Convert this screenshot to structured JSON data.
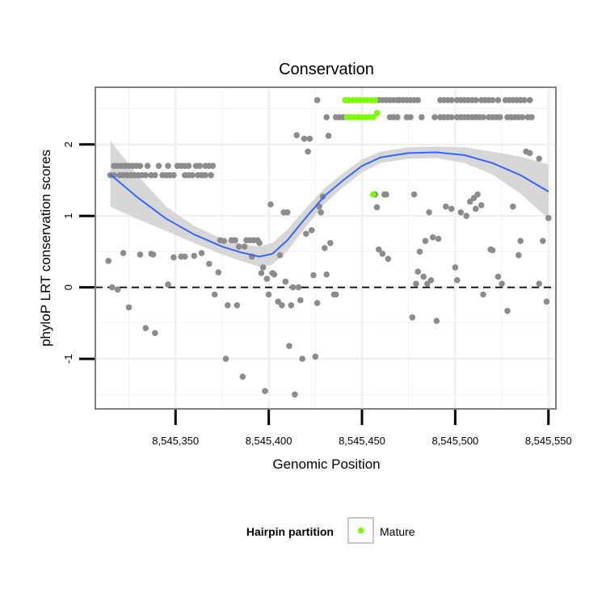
{
  "chart_data": {
    "type": "scatter",
    "title": "Conservation",
    "xlabel": "Genomic Position",
    "ylabel": "phyloP LRT conservation scores",
    "xlim": [
      8545307,
      8545554
    ],
    "ylim": [
      -1.7,
      2.8
    ],
    "x_ticks": [
      {
        "value": 8545350,
        "label": "8,545,350"
      },
      {
        "value": 8545400,
        "label": "8,545,400"
      },
      {
        "value": 8545450,
        "label": "8,545,450"
      },
      {
        "value": 8545500,
        "label": "8,545,500"
      },
      {
        "value": 8545550,
        "label": "8,545,550"
      }
    ],
    "y_ticks": [
      {
        "value": -1,
        "label": "-1"
      },
      {
        "value": 0,
        "label": "0"
      },
      {
        "value": 1,
        "label": "1"
      },
      {
        "value": 2,
        "label": "2"
      }
    ],
    "grid": true,
    "reference_line": {
      "y": 0,
      "style": "dashed"
    },
    "legend": {
      "title": "Hairpin partition",
      "position": "bottom",
      "entries": [
        {
          "label": "Mature",
          "color": "#7cfc00"
        }
      ]
    },
    "colors": {
      "points": "#8c8c8c",
      "mature": "#7cfc00",
      "smooth_line": "#3366ff",
      "ribbon": "#d3d3d3",
      "panel_border": "#808080",
      "grid": "#f0f0f0"
    },
    "smooth": {
      "x": [
        8545315,
        8545330,
        8545345,
        8545360,
        8545375,
        8545385,
        8545395,
        8545402,
        8545410,
        8545420,
        8545430,
        8545440,
        8545450,
        8545460,
        8545475,
        8545490,
        8545505,
        8545520,
        8545535,
        8545550
      ],
      "y": [
        1.58,
        1.25,
        0.96,
        0.74,
        0.57,
        0.49,
        0.43,
        0.47,
        0.66,
        0.98,
        1.28,
        1.5,
        1.7,
        1.82,
        1.88,
        1.89,
        1.85,
        1.74,
        1.57,
        1.34
      ],
      "lower": [
        1.13,
        0.95,
        0.79,
        0.62,
        0.46,
        0.37,
        0.29,
        0.32,
        0.51,
        0.85,
        1.17,
        1.4,
        1.61,
        1.74,
        1.8,
        1.81,
        1.74,
        1.58,
        1.31,
        0.96
      ],
      "upper": [
        2.05,
        1.56,
        1.13,
        0.86,
        0.68,
        0.61,
        0.57,
        0.62,
        0.81,
        1.11,
        1.39,
        1.6,
        1.79,
        1.9,
        1.96,
        1.97,
        1.96,
        1.9,
        1.83,
        1.72
      ]
    },
    "series": [
      {
        "name": "",
        "color": "#8c8c8c",
        "points": [
          [
            8545317,
            1.7
          ],
          [
            8545319,
            1.7
          ],
          [
            8545321,
            1.7
          ],
          [
            8545323,
            1.7
          ],
          [
            8545325,
            1.7
          ],
          [
            8545327,
            1.7
          ],
          [
            8545329,
            1.7
          ],
          [
            8545331,
            1.7
          ],
          [
            8545335,
            1.7
          ],
          [
            8545341,
            1.7
          ],
          [
            8545346,
            1.7
          ],
          [
            8545351,
            1.7
          ],
          [
            8545353,
            1.7
          ],
          [
            8545355,
            1.7
          ],
          [
            8545357,
            1.7
          ],
          [
            8545361,
            1.7
          ],
          [
            8545363,
            1.7
          ],
          [
            8545366,
            1.7
          ],
          [
            8545368,
            1.7
          ],
          [
            8545370,
            1.7
          ],
          [
            8545315,
            1.57
          ],
          [
            8545317,
            1.57
          ],
          [
            8545320,
            1.57
          ],
          [
            8545322,
            1.57
          ],
          [
            8545324,
            1.57
          ],
          [
            8545326,
            1.57
          ],
          [
            8545328,
            1.57
          ],
          [
            8545330,
            1.57
          ],
          [
            8545332,
            1.57
          ],
          [
            8545334,
            1.57
          ],
          [
            8545337,
            1.57
          ],
          [
            8545339,
            1.57
          ],
          [
            8545343,
            1.57
          ],
          [
            8545345,
            1.57
          ],
          [
            8545347,
            1.57
          ],
          [
            8545349,
            1.57
          ],
          [
            8545355,
            1.57
          ],
          [
            8545357,
            1.57
          ],
          [
            8545359,
            1.57
          ],
          [
            8545362,
            1.57
          ],
          [
            8545364,
            1.57
          ],
          [
            8545366,
            1.57
          ],
          [
            8545369,
            1.57
          ],
          [
            8545314,
            0.37
          ],
          [
            8545316,
            0.0
          ],
          [
            8545319,
            -0.03
          ],
          [
            8545322,
            0.48
          ],
          [
            8545325,
            -0.28
          ],
          [
            8545331,
            0.46
          ],
          [
            8545334,
            -0.57
          ],
          [
            8545337,
            0.47
          ],
          [
            8545338,
            0.46
          ],
          [
            8545339,
            -0.64
          ],
          [
            8545346,
            0.04
          ],
          [
            8545349,
            0.42
          ],
          [
            8545353,
            0.43
          ],
          [
            8545355,
            0.43
          ],
          [
            8545360,
            0.44
          ],
          [
            8545364,
            0.48
          ],
          [
            8545368,
            0.33
          ],
          [
            8545371,
            -0.1
          ],
          [
            8545373,
            0.21
          ],
          [
            8545374,
            0.66
          ],
          [
            8545376,
            0.65
          ],
          [
            8545377,
            -1.0
          ],
          [
            8545378,
            -0.25
          ],
          [
            8545380,
            0.66
          ],
          [
            8545382,
            0.66
          ],
          [
            8545383,
            -0.25
          ],
          [
            8545384,
            0.57
          ],
          [
            8545386,
            -1.25
          ],
          [
            8545387,
            0.57
          ],
          [
            8545388,
            0.66
          ],
          [
            8545390,
            0.66
          ],
          [
            8545391,
            0.43
          ],
          [
            8545392,
            0.66
          ],
          [
            8545394,
            0.66
          ],
          [
            8545395,
            0.62
          ],
          [
            8545396,
            0.2
          ],
          [
            8545397,
            0.28
          ],
          [
            8545398,
            -1.45
          ],
          [
            8545399,
            0.12
          ],
          [
            8545400,
            -0.1
          ],
          [
            8545401,
            1.16
          ],
          [
            8545402,
            0.2
          ],
          [
            8545403,
            0.18
          ],
          [
            8545405,
            -0.2
          ],
          [
            8545406,
            0.45
          ],
          [
            8545407,
            -0.25
          ],
          [
            8545408,
            1.05
          ],
          [
            8545409,
            0.08
          ],
          [
            8545410,
            1.05
          ],
          [
            8545411,
            -0.82
          ],
          [
            8545412,
            -0.25
          ],
          [
            8545413,
            0.0
          ],
          [
            8545414,
            -1.5
          ],
          [
            8545415,
            2.13
          ],
          [
            8545416,
            0.0
          ],
          [
            8545417,
            -0.18
          ],
          [
            8545418,
            -1.0
          ],
          [
            8545419,
            2.08
          ],
          [
            8545420,
            0.75
          ],
          [
            8545421,
            1.9
          ],
          [
            8545422,
            2.08
          ],
          [
            8545423,
            0.8
          ],
          [
            8545424,
            0.17
          ],
          [
            8545425,
            -0.97
          ],
          [
            8545426,
            -0.22
          ],
          [
            8545427,
            1.13
          ],
          [
            8545428,
            1.05
          ],
          [
            8545429,
            1.27
          ],
          [
            8545430,
            0.55
          ],
          [
            8545431,
            0.18
          ],
          [
            8545432,
            2.12
          ],
          [
            8545433,
            0.62
          ],
          [
            8545435,
            -0.1
          ],
          [
            8545436,
            -0.1
          ],
          [
            8545426,
            2.62
          ],
          [
            8545431,
            2.38
          ],
          [
            8545436,
            2.38
          ],
          [
            8545438,
            2.38
          ],
          [
            8545440,
            2.38
          ],
          [
            8545457,
            1.3
          ],
          [
            8545458,
            1.12
          ],
          [
            8545459,
            0.53
          ],
          [
            8545461,
            0.47
          ],
          [
            8545462,
            1.3
          ],
          [
            8545463,
            1.3
          ],
          [
            8545464,
            0.4
          ],
          [
            8545465,
            2.38
          ],
          [
            8545467,
            2.38
          ],
          [
            8545469,
            2.38
          ],
          [
            8545470,
            2.62
          ],
          [
            8545472,
            2.62
          ],
          [
            8545474,
            2.38
          ],
          [
            8545476,
            2.38
          ],
          [
            8545477,
            -0.42
          ],
          [
            8545478,
            1.3
          ],
          [
            8545479,
            0.05
          ],
          [
            8545480,
            0.22
          ],
          [
            8545481,
            0.5
          ],
          [
            8545482,
            2.38
          ],
          [
            8545483,
            0.15
          ],
          [
            8545484,
            0.65
          ],
          [
            8545485,
            0.05
          ],
          [
            8545486,
            1.05
          ],
          [
            8545487,
            0.1
          ],
          [
            8545488,
            0.7
          ],
          [
            8545489,
            2.38
          ],
          [
            8545490,
            -0.47
          ],
          [
            8545491,
            0.68
          ],
          [
            8545492,
            2.38
          ],
          [
            8545459,
            2.62
          ],
          [
            8545461,
            2.62
          ],
          [
            8545463,
            2.62
          ],
          [
            8545465,
            2.62
          ],
          [
            8545467,
            2.62
          ],
          [
            8545469,
            2.62
          ],
          [
            8545474,
            2.62
          ],
          [
            8545476,
            2.62
          ],
          [
            8545478,
            2.62
          ],
          [
            8545480,
            2.62
          ],
          [
            8545492,
            2.62
          ],
          [
            8545494,
            2.62
          ],
          [
            8545496,
            2.62
          ],
          [
            8545498,
            2.62
          ],
          [
            8545501,
            2.62
          ],
          [
            8545503,
            2.62
          ],
          [
            8545505,
            2.62
          ],
          [
            8545507,
            2.62
          ],
          [
            8545509,
            2.62
          ],
          [
            8545511,
            2.62
          ],
          [
            8545514,
            2.62
          ],
          [
            8545516,
            2.62
          ],
          [
            8545518,
            2.62
          ],
          [
            8545520,
            2.62
          ],
          [
            8545523,
            2.62
          ],
          [
            8545527,
            2.62
          ],
          [
            8545529,
            2.62
          ],
          [
            8545531,
            2.62
          ],
          [
            8545533,
            2.62
          ],
          [
            8545535,
            2.62
          ],
          [
            8545537,
            2.62
          ],
          [
            8545540,
            2.62
          ],
          [
            8545494,
            2.38
          ],
          [
            8545496,
            2.38
          ],
          [
            8545498,
            2.38
          ],
          [
            8545501,
            2.38
          ],
          [
            8545503,
            2.38
          ],
          [
            8545505,
            2.38
          ],
          [
            8545507,
            2.38
          ],
          [
            8545509,
            2.38
          ],
          [
            8545511,
            2.38
          ],
          [
            8545513,
            2.38
          ],
          [
            8545515,
            2.38
          ],
          [
            8545518,
            2.38
          ],
          [
            8545520,
            2.38
          ],
          [
            8545522,
            2.38
          ],
          [
            8545524,
            2.38
          ],
          [
            8545528,
            2.38
          ],
          [
            8545530,
            2.38
          ],
          [
            8545532,
            2.38
          ],
          [
            8545534,
            2.38
          ],
          [
            8545536,
            2.38
          ],
          [
            8545539,
            2.38
          ],
          [
            8545541,
            2.38
          ],
          [
            8545495,
            1.13
          ],
          [
            8545498,
            1.1
          ],
          [
            8545500,
            0.28
          ],
          [
            8545501,
            0.1
          ],
          [
            8545503,
            1.05
          ],
          [
            8545506,
            1.0
          ],
          [
            8545508,
            1.2
          ],
          [
            8545510,
            1.25
          ],
          [
            8545511,
            1.1
          ],
          [
            8545512,
            1.3
          ],
          [
            8545514,
            1.15
          ],
          [
            8545515,
            -0.1
          ],
          [
            8545519,
            0.53
          ],
          [
            8545520,
            0.52
          ],
          [
            8545523,
            0.15
          ],
          [
            8545525,
            0.05
          ],
          [
            8545528,
            -0.33
          ],
          [
            8545531,
            1.13
          ],
          [
            8545534,
            0.45
          ],
          [
            8545535,
            0.65
          ],
          [
            8545538,
            1.9
          ],
          [
            8545540,
            1.88
          ],
          [
            8545545,
            1.8
          ],
          [
            8545547,
            0.65
          ],
          [
            8545549,
            -0.2
          ],
          [
            8545550,
            0.97
          ],
          [
            8545545,
            0.05
          ]
        ]
      },
      {
        "name": "Mature",
        "color": "#7cfc00",
        "points": [
          [
            8545441,
            2.62
          ],
          [
            8545443,
            2.62
          ],
          [
            8545445,
            2.62
          ],
          [
            8545447,
            2.62
          ],
          [
            8545449,
            2.62
          ],
          [
            8545451,
            2.62
          ],
          [
            8545453,
            2.62
          ],
          [
            8545455,
            2.62
          ],
          [
            8545457,
            2.62
          ],
          [
            8545442,
            2.38
          ],
          [
            8545444,
            2.38
          ],
          [
            8545446,
            2.38
          ],
          [
            8545448,
            2.38
          ],
          [
            8545450,
            2.38
          ],
          [
            8545452,
            2.38
          ],
          [
            8545454,
            2.38
          ],
          [
            8545456,
            2.38
          ],
          [
            8545458,
            2.44
          ],
          [
            8545456,
            1.3
          ]
        ]
      }
    ]
  }
}
